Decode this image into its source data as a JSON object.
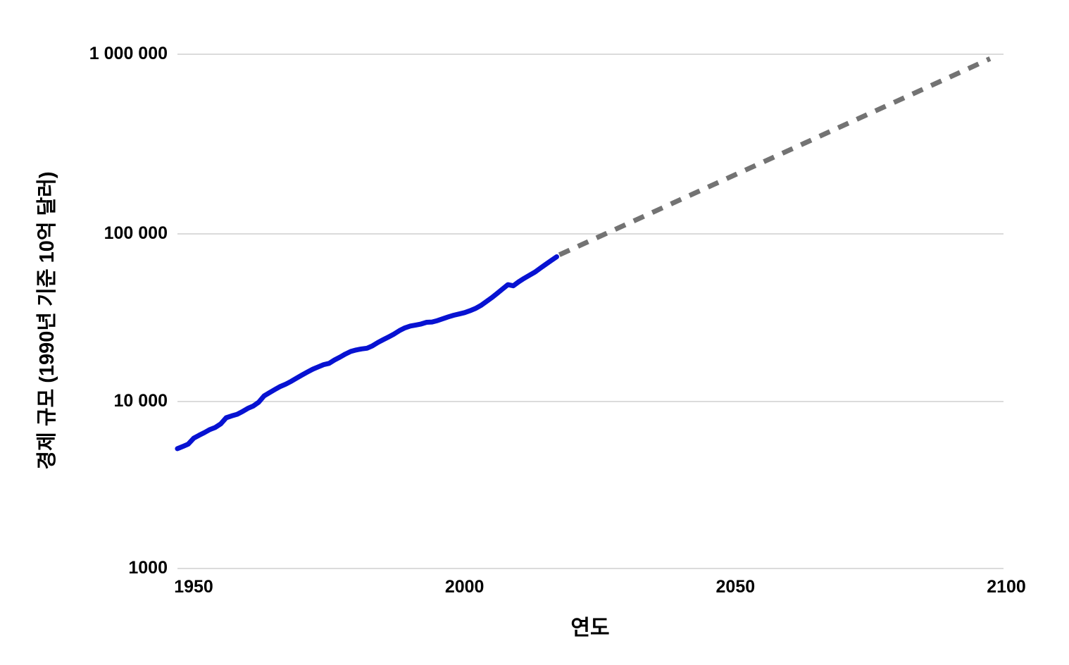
{
  "chart_data": {
    "type": "line",
    "title": "",
    "xlabel": "연도",
    "ylabel": "경제 규모 (1990년 기준 10억 달러)",
    "y_scale": "log",
    "xlim": [
      1947,
      2100
    ],
    "ylim": [
      1000,
      1000000
    ],
    "grid": "horizontal-only",
    "legend": "none",
    "x_ticks": [
      {
        "year": 1950,
        "label": "1950"
      },
      {
        "year": 2000,
        "label": "2000"
      },
      {
        "year": 2050,
        "label": "2050"
      },
      {
        "year": 2100,
        "label": "2100"
      }
    ],
    "y_ticks": [
      {
        "value": 1000,
        "label": "1000"
      },
      {
        "value": 10000,
        "label": "10 000"
      },
      {
        "value": 100000,
        "label": "100 000"
      },
      {
        "value": 1000000,
        "label": "1 000 000"
      }
    ],
    "colors": {
      "historical_line": "#0712D2",
      "projection_line": "#737373",
      "gridline": "#DBDBDB",
      "text": "#000000",
      "background": "#FFFFFF"
    },
    "series": [
      {
        "id": "historical",
        "style": "solid",
        "color_key": "historical_line",
        "points": [
          [
            1947,
            5220
          ],
          [
            1948,
            5380
          ],
          [
            1949,
            5560
          ],
          [
            1950,
            6030
          ],
          [
            1951,
            6280
          ],
          [
            1952,
            6520
          ],
          [
            1953,
            6800
          ],
          [
            1954,
            7000
          ],
          [
            1955,
            7350
          ],
          [
            1956,
            8000
          ],
          [
            1957,
            8200
          ],
          [
            1958,
            8380
          ],
          [
            1959,
            8700
          ],
          [
            1960,
            9100
          ],
          [
            1961,
            9400
          ],
          [
            1962,
            9900
          ],
          [
            1963,
            10800
          ],
          [
            1964,
            11300
          ],
          [
            1965,
            11800
          ],
          [
            1966,
            12300
          ],
          [
            1967,
            12700
          ],
          [
            1968,
            13200
          ],
          [
            1969,
            13800
          ],
          [
            1970,
            14400
          ],
          [
            1971,
            15000
          ],
          [
            1972,
            15600
          ],
          [
            1973,
            16100
          ],
          [
            1974,
            16600
          ],
          [
            1975,
            16900
          ],
          [
            1976,
            17700
          ],
          [
            1977,
            18400
          ],
          [
            1978,
            19200
          ],
          [
            1979,
            19900
          ],
          [
            1980,
            20300
          ],
          [
            1981,
            20600
          ],
          [
            1982,
            20800
          ],
          [
            1983,
            21500
          ],
          [
            1984,
            22500
          ],
          [
            1985,
            23400
          ],
          [
            1986,
            24300
          ],
          [
            1987,
            25300
          ],
          [
            1988,
            26500
          ],
          [
            1989,
            27500
          ],
          [
            1990,
            28200
          ],
          [
            1991,
            28600
          ],
          [
            1992,
            29000
          ],
          [
            1993,
            29700
          ],
          [
            1994,
            29800
          ],
          [
            1995,
            30400
          ],
          [
            1996,
            31200
          ],
          [
            1997,
            32000
          ],
          [
            1998,
            32700
          ],
          [
            1999,
            33300
          ],
          [
            2000,
            33900
          ],
          [
            2001,
            34800
          ],
          [
            2002,
            35900
          ],
          [
            2003,
            37400
          ],
          [
            2004,
            39400
          ],
          [
            2005,
            41600
          ],
          [
            2006,
            44100
          ],
          [
            2007,
            46900
          ],
          [
            2008,
            49800
          ],
          [
            2009,
            49000
          ],
          [
            2010,
            51800
          ],
          [
            2011,
            54300
          ],
          [
            2012,
            56700
          ],
          [
            2013,
            59200
          ],
          [
            2014,
            62500
          ],
          [
            2015,
            65900
          ],
          [
            2016,
            69400
          ],
          [
            2017,
            73000
          ]
        ]
      },
      {
        "id": "projection",
        "style": "dashed",
        "color_key": "projection_line",
        "points": [
          [
            2017.5,
            75000
          ],
          [
            2097,
            945000
          ]
        ]
      }
    ]
  }
}
